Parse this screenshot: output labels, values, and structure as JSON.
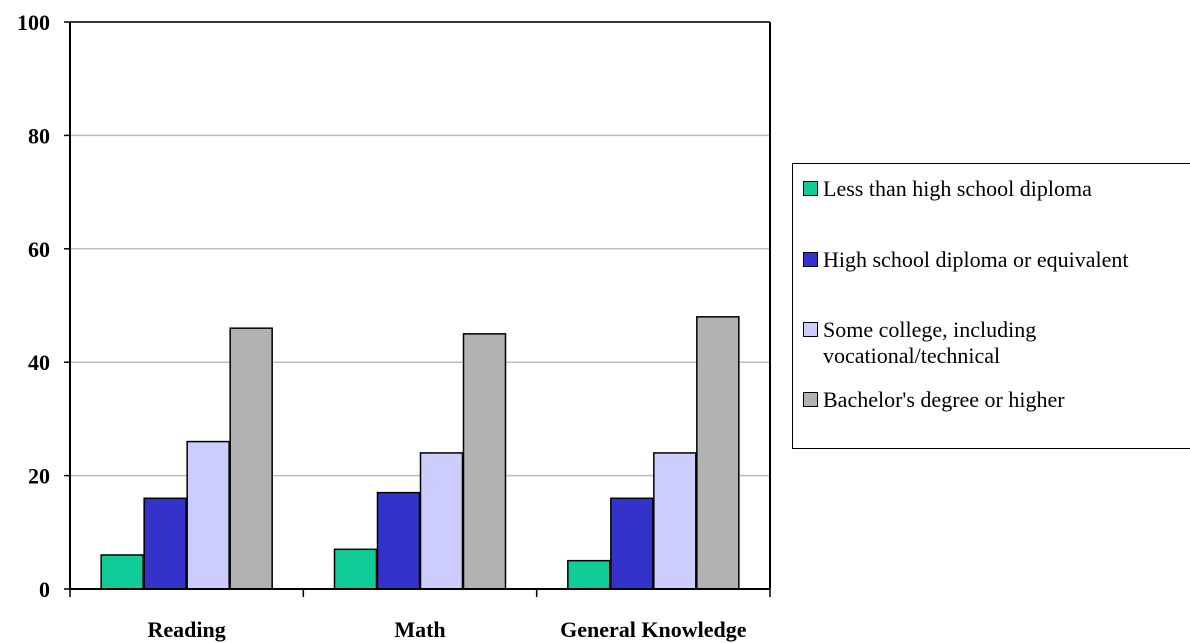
{
  "chart_data": {
    "type": "bar",
    "title": "",
    "xlabel": "",
    "ylabel": "",
    "categories": [
      "Reading",
      "Math",
      "General Knowledge"
    ],
    "ylim": [
      0,
      100
    ],
    "yticks": [
      "0",
      "20",
      "40",
      "60",
      "80",
      "100"
    ],
    "grid": true,
    "legend_position": "right",
    "series": [
      {
        "name": "Less than high school diploma",
        "color": "#11cc99",
        "values": [
          6,
          7,
          5
        ]
      },
      {
        "name": "High school diploma or equivalent",
        "color": "#3333cc",
        "values": [
          16,
          17,
          16
        ]
      },
      {
        "name": "Some college, including\nvocational/technical",
        "color": "#ccccff",
        "values": [
          26,
          24,
          24
        ]
      },
      {
        "name": "Bachelor's degree or higher",
        "color": "#b2b2b2",
        "values": [
          46,
          45,
          48
        ]
      }
    ]
  }
}
